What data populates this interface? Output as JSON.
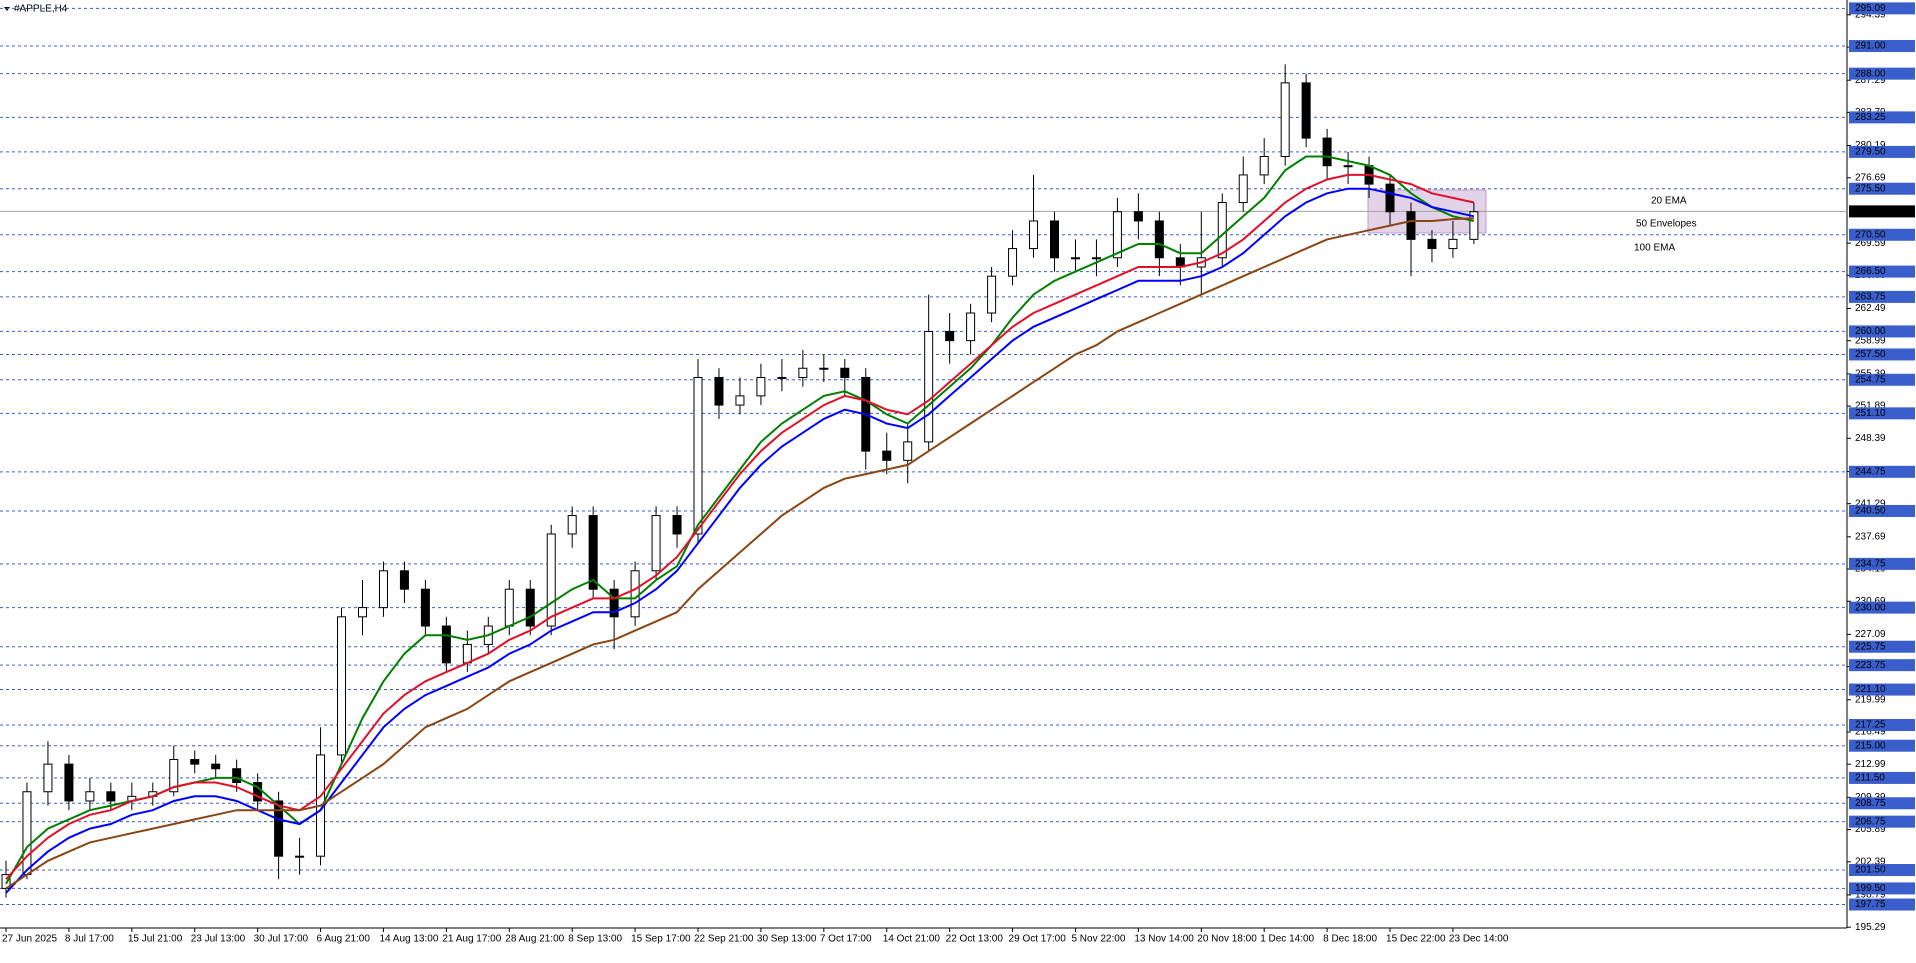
{
  "chart_data": {
    "type": "candlestick",
    "title": "#APPLE,H4",
    "categories": [
      "27 Jun 2025",
      null,
      null,
      "8 Jul 17:00",
      null,
      null,
      "15 Jul 21:00",
      null,
      null,
      "23 Jul 13:00",
      null,
      null,
      "30 Jul 17:00",
      null,
      null,
      "6 Aug 21:00",
      null,
      null,
      "14 Aug 13:00",
      null,
      null,
      "21 Aug 17:00",
      null,
      null,
      "28 Aug 21:00",
      null,
      null,
      "8 Sep 13:00",
      null,
      null,
      "15 Sep 17:00",
      null,
      null,
      "22 Sep 21:00",
      null,
      null,
      "30 Sep 13:00",
      null,
      null,
      "7 Oct 17:00",
      null,
      null,
      "14 Oct 21:00",
      null,
      null,
      "22 Oct 13:00",
      null,
      null,
      "29 Oct 17:00",
      null,
      null,
      "5 Nov 22:00",
      null,
      null,
      "13 Nov 14:00",
      null,
      null,
      "20 Nov 18:00",
      null,
      null,
      "1 Dec 14:00",
      null,
      null,
      "8 Dec 18:00",
      null,
      null,
      "15 Dec 22:00",
      null,
      null,
      "23 Dec 14:00",
      null
    ],
    "open": [
      199.5,
      201,
      210,
      213,
      209,
      210,
      209,
      209.5,
      210,
      213.5,
      213,
      212.5,
      211,
      209,
      203,
      203,
      214,
      229,
      230,
      234,
      232,
      228,
      224,
      226,
      228,
      232,
      228,
      238,
      240,
      232,
      229,
      234,
      240,
      238,
      255,
      252,
      253,
      255,
      255,
      256,
      256,
      255,
      247,
      246,
      248,
      260,
      259,
      262,
      266,
      269,
      272,
      268,
      268,
      268,
      273,
      272,
      268,
      267,
      268,
      274,
      277,
      279,
      287,
      281,
      278,
      278,
      276,
      273,
      270,
      269,
      270
    ],
    "high": [
      202.5,
      211,
      215.5,
      214,
      211.5,
      211,
      211,
      211,
      215,
      214.5,
      214,
      213.5,
      212,
      210,
      205,
      217,
      230,
      233,
      235,
      235,
      233,
      229,
      227.5,
      229,
      233,
      233,
      239,
      241,
      241,
      233,
      235,
      241,
      241,
      257,
      256,
      255,
      256.5,
      257,
      258,
      257.5,
      257,
      256,
      249,
      250,
      264,
      262,
      263,
      267,
      271,
      277,
      273,
      270,
      270,
      274.5,
      275,
      273,
      269.5,
      273,
      275,
      279,
      281,
      289,
      288,
      282,
      279.5,
      279,
      277,
      274,
      271,
      272,
      274
    ],
    "low": [
      198.5,
      200.5,
      208.5,
      208,
      208,
      208,
      208,
      208.5,
      209.5,
      212,
      211.5,
      210,
      208,
      200.5,
      201,
      202,
      213,
      227,
      229,
      230.5,
      227,
      223,
      223,
      225,
      227,
      227,
      227,
      236.5,
      231,
      225.5,
      228,
      233,
      236.5,
      237,
      250.5,
      251,
      252,
      253.5,
      254,
      254.5,
      253,
      245,
      244.5,
      243.5,
      247,
      256.5,
      257.5,
      261,
      265,
      268,
      266.5,
      266.5,
      266,
      267,
      270,
      266,
      265,
      264,
      267,
      273,
      276,
      278,
      280,
      276.5,
      276,
      274.5,
      271.5,
      266,
      267.5,
      268,
      269.5
    ],
    "close": [
      201,
      210,
      213,
      209,
      210,
      209,
      209.5,
      210,
      213.5,
      213,
      212.5,
      211,
      209,
      203,
      203,
      214,
      229,
      230,
      234,
      232,
      228,
      224,
      226,
      228,
      232,
      228,
      238,
      240,
      232,
      229,
      234,
      240,
      238,
      255,
      252,
      253,
      255,
      255,
      256,
      256,
      255,
      247,
      246,
      248,
      260,
      259,
      262,
      266,
      269,
      272,
      268,
      268,
      268,
      273,
      272,
      268,
      267,
      268,
      274,
      277,
      279,
      287,
      281,
      278,
      278,
      276,
      273,
      270,
      269,
      270,
      273
    ],
    "series": [
      {
        "name": "20 EMA",
        "color": "#008000",
        "values": [
          200,
          204,
          206,
          207,
          208,
          208.5,
          209,
          209.5,
          210.5,
          211,
          211.5,
          211.5,
          210.5,
          208.5,
          206.5,
          208,
          213,
          218,
          222,
          225,
          227,
          227,
          226.5,
          227,
          228,
          229,
          230.5,
          232,
          233,
          231,
          231,
          233,
          234.5,
          239,
          242,
          245,
          248,
          250,
          251.5,
          253,
          253.5,
          252.5,
          251,
          250,
          252,
          254,
          256,
          258.5,
          261.5,
          264,
          265.5,
          266.5,
          267.5,
          268.5,
          269.5,
          269.5,
          268.5,
          268.5,
          270.5,
          272.5,
          274.5,
          277.5,
          279,
          279,
          278.5,
          278,
          277,
          275,
          273.5,
          272.5,
          272
        ]
      },
      {
        "color": "#e0102a",
        "values": [
          200.5,
          203,
          205,
          206.5,
          207.5,
          208,
          209,
          209.5,
          210.5,
          211,
          211,
          210.5,
          209.5,
          208.5,
          208,
          209.5,
          212.5,
          215.5,
          218.5,
          220.5,
          222,
          223,
          224,
          225,
          226.5,
          227.5,
          229,
          230,
          231,
          231,
          232,
          233.5,
          235.5,
          238.5,
          241.5,
          244.5,
          247,
          249,
          250.5,
          252,
          253,
          252.5,
          251.5,
          251,
          252.5,
          254.5,
          256.5,
          258.5,
          260.5,
          262,
          263,
          264,
          265,
          266,
          267,
          267,
          267,
          267.5,
          268.5,
          270,
          272,
          274,
          275.5,
          276.5,
          277,
          277,
          276.5,
          276,
          275,
          274.5,
          274
        ]
      },
      {
        "name": "50 Envelopes",
        "color": "#0000ff",
        "values": [
          199,
          201.5,
          203.5,
          205,
          206,
          206.5,
          207.5,
          208,
          209,
          209.5,
          209.5,
          209,
          208,
          207,
          206.5,
          208,
          211,
          214,
          217,
          219,
          220.5,
          221.5,
          222.5,
          223.5,
          225,
          226,
          227.5,
          228.5,
          229.5,
          229.5,
          230.5,
          232,
          234,
          237,
          240,
          243,
          245.5,
          247.5,
          249,
          250.5,
          251.5,
          251,
          250,
          249.5,
          251,
          253,
          255,
          257,
          259,
          260.5,
          261.5,
          262.5,
          263.5,
          264.5,
          265.5,
          265.5,
          265.5,
          266,
          267,
          268.5,
          270.5,
          272.5,
          274,
          275,
          275.5,
          275.5,
          275,
          274.5,
          273.5,
          273,
          272.5
        ]
      },
      {
        "name": "100 EMA",
        "color": "#8b4513",
        "values": [
          199.5,
          201,
          202.5,
          203.5,
          204.5,
          205,
          205.5,
          206,
          206.5,
          207,
          207.5,
          208,
          208,
          208,
          208,
          208.5,
          210,
          211.5,
          213,
          215,
          217,
          218,
          219,
          220.5,
          222,
          223,
          224,
          225,
          226,
          226.5,
          227.5,
          228.5,
          229.5,
          232,
          234,
          236,
          238,
          240,
          241.5,
          243,
          244,
          244.5,
          245,
          245.5,
          247,
          248.5,
          250,
          251.5,
          253,
          254.5,
          256,
          257.5,
          258.5,
          260,
          261,
          262,
          263,
          264,
          265,
          266,
          267,
          268,
          269,
          270,
          270.5,
          271,
          271.5,
          272,
          272,
          272.2,
          272.3
        ]
      }
    ],
    "ylim": [
      195.2,
      296
    ],
    "yticks": [
      195.29,
      198.79,
      202.39,
      205.89,
      209.39,
      212.99,
      216.49,
      219.99,
      223.59,
      227.09,
      230.69,
      234.19,
      237.69,
      241.29,
      244.79,
      248.39,
      251.89,
      255.39,
      258.99,
      262.49,
      266.09,
      269.59,
      276.69,
      280.19,
      283.79,
      287.29,
      290.89,
      294.39
    ],
    "levels": [
      {
        "value": 295.09,
        "label": "295.09"
      },
      {
        "value": 291,
        "label": "291.00"
      },
      {
        "value": 288,
        "label": "288.00"
      },
      {
        "value": 283.25,
        "label": "283.25"
      },
      {
        "value": 279.5,
        "label": "279.50"
      },
      {
        "value": 275.5,
        "label": "275.50"
      },
      {
        "value": 270.5,
        "label": "270.50"
      },
      {
        "value": 266.5,
        "label": "266.50"
      },
      {
        "value": 263.75,
        "label": "263.75"
      },
      {
        "value": 260,
        "label": "260.00"
      },
      {
        "value": 257.5,
        "label": "257.50"
      },
      {
        "value": 254.75,
        "label": "254.75"
      },
      {
        "value": 251.1,
        "label": "251.10"
      },
      {
        "value": 244.75,
        "label": "244.75"
      },
      {
        "value": 240.5,
        "label": "240.50"
      },
      {
        "value": 234.75,
        "label": "234.75"
      },
      {
        "value": 230,
        "label": "230.00"
      },
      {
        "value": 225.75,
        "label": "225.75"
      },
      {
        "value": 223.75,
        "label": "223.75"
      },
      {
        "value": 221.1,
        "label": "221.10"
      },
      {
        "value": 217.25,
        "label": "217.25"
      },
      {
        "value": 215,
        "label": "215.00"
      },
      {
        "value": 211.5,
        "label": "211.50"
      },
      {
        "value": 208.75,
        "label": "208.75"
      },
      {
        "value": 206.75,
        "label": "206.75"
      },
      {
        "value": 201.5,
        "label": "201.50"
      },
      {
        "value": 199.5,
        "label": "199.50"
      },
      {
        "value": 197.75,
        "label": "197.75"
      }
    ],
    "current_price": 273.04,
    "grid": false
  }
}
